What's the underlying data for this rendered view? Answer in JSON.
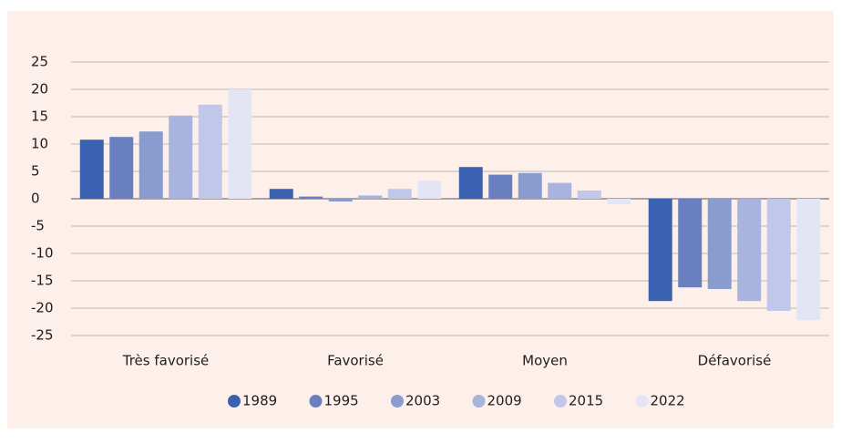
{
  "chart_data": {
    "type": "bar",
    "categories": [
      "Très favorisé",
      "Favorisé",
      "Moyen",
      "Défavorisé"
    ],
    "series": [
      {
        "name": "1989",
        "color": "#3a62b0",
        "values": [
          10.8,
          1.8,
          5.8,
          -18.7
        ]
      },
      {
        "name": "1995",
        "color": "#6a7fc0",
        "values": [
          11.3,
          0.4,
          4.4,
          -16.2
        ]
      },
      {
        "name": "2003",
        "color": "#8a9bcf",
        "values": [
          12.3,
          -0.5,
          4.7,
          -16.5
        ]
      },
      {
        "name": "2009",
        "color": "#a8b4de",
        "values": [
          15.2,
          0.6,
          2.9,
          -18.7
        ]
      },
      {
        "name": "2015",
        "color": "#c1c7e8",
        "values": [
          17.2,
          1.8,
          1.5,
          -20.5
        ]
      },
      {
        "name": "2022",
        "color": "#e3e5f4",
        "values": [
          20,
          3.3,
          -1.0,
          -22.2
        ]
      }
    ],
    "ylim": [
      -25,
      25
    ],
    "yticks": [
      -25,
      -20,
      -15,
      -10,
      -5,
      0,
      5,
      10,
      15,
      20,
      25
    ],
    "grid": true,
    "legend": "bottom"
  }
}
